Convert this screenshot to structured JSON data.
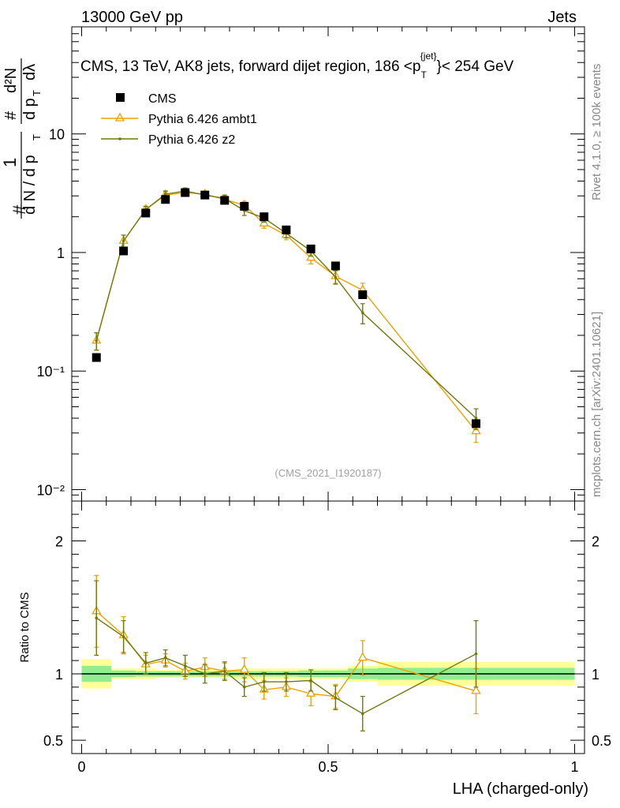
{
  "header": {
    "left": "13000 GeV pp",
    "right": "Jets"
  },
  "title": {
    "main": "CMS, 13 TeV, AK8 jets, forward dijet region, 186 <p",
    "sub": "T",
    "sup": "{jet}",
    "tail": "}< 254 GeV"
  },
  "side_labels": {
    "rivet": "Rivet 4.1.0, ≥ 100k events",
    "mcplots": "mcplots.cern.ch [arXiv:2401.10621]"
  },
  "watermark": "(CMS_2021_I1920187)",
  "ylabel_main": {
    "hash1": "#",
    "one": "1",
    "dN": "d N / d p",
    "T": "T",
    "hash2": "#",
    "dp": "d p",
    "d2N": "d²N",
    "dlambda": "dλ"
  },
  "ylabel_ratio": "Ratio to CMS",
  "xlabel": "LHA (charged-only)",
  "colors": {
    "cms": "#000000",
    "ambt1": "#f0a000",
    "z2": "#6e7a0a",
    "band_yellow": "#ffff99",
    "band_green": "#90ee90"
  },
  "chart_data": [
    {
      "type": "scatter",
      "panel": "main",
      "yscale": "log",
      "xlim": [
        -0.02,
        1.02
      ],
      "ylim": [
        0.008,
        80
      ],
      "xticks": [
        0,
        0.5,
        1
      ],
      "xtick_labels": [
        "0",
        "0.5",
        "1"
      ],
      "yticks": [
        0.01,
        0.1,
        1,
        10
      ],
      "ytick_labels": [
        "10⁻²",
        "10⁻¹",
        "1",
        "10"
      ],
      "legend": [
        "CMS",
        "Pythia 6.426 ambt1",
        "Pythia 6.426 z2"
      ],
      "series": [
        {
          "name": "CMS",
          "x": [
            0.03,
            0.085,
            0.13,
            0.17,
            0.21,
            0.25,
            0.29,
            0.33,
            0.37,
            0.415,
            0.465,
            0.515,
            0.57,
            0.8
          ],
          "y": [
            0.13,
            1.03,
            2.15,
            2.8,
            3.2,
            3.05,
            2.75,
            2.45,
            2.0,
            1.55,
            1.07,
            0.77,
            0.44,
            0.036
          ],
          "err": [
            0.01,
            0.05,
            0.08,
            0.1,
            0.1,
            0.1,
            0.1,
            0.1,
            0.08,
            0.06,
            0.05,
            0.04,
            0.03,
            0.003
          ]
        },
        {
          "name": "Pythia 6.426 ambt1",
          "x": [
            0.03,
            0.085,
            0.13,
            0.17,
            0.21,
            0.25,
            0.29,
            0.33,
            0.37,
            0.415,
            0.465,
            0.515,
            0.57,
            0.8
          ],
          "y": [
            0.18,
            1.25,
            2.3,
            3.05,
            3.2,
            3.1,
            2.8,
            2.5,
            1.75,
            1.4,
            0.9,
            0.63,
            0.48,
            0.031
          ],
          "err": [
            0.03,
            0.15,
            0.15,
            0.2,
            0.2,
            0.2,
            0.2,
            0.2,
            0.15,
            0.12,
            0.1,
            0.08,
            0.07,
            0.006
          ]
        },
        {
          "name": "Pythia 6.426 z2",
          "x": [
            0.03,
            0.085,
            0.13,
            0.17,
            0.21,
            0.25,
            0.29,
            0.33,
            0.37,
            0.415,
            0.465,
            0.515,
            0.57,
            0.8
          ],
          "y": [
            0.18,
            1.25,
            2.3,
            3.1,
            3.3,
            3.05,
            2.85,
            2.25,
            1.95,
            1.45,
            1.03,
            0.62,
            0.31,
            0.04
          ],
          "err": [
            0.03,
            0.15,
            0.15,
            0.2,
            0.2,
            0.2,
            0.2,
            0.2,
            0.15,
            0.12,
            0.1,
            0.08,
            0.06,
            0.008
          ]
        }
      ]
    },
    {
      "type": "line",
      "panel": "ratio",
      "xlim": [
        -0.02,
        1.02
      ],
      "ylim": [
        0.4,
        2.3
      ],
      "yticks": [
        0.5,
        1,
        2
      ],
      "ytick_labels": [
        "0.5",
        "1",
        "2"
      ],
      "reference": 1,
      "bands": {
        "x_edges": [
          0,
          0.06,
          0.11,
          0.15,
          0.19,
          0.23,
          0.27,
          0.31,
          0.35,
          0.39,
          0.44,
          0.49,
          0.54,
          0.6,
          1.0
        ],
        "yellow_half": [
          0.11,
          0.04,
          0.04,
          0.03,
          0.03,
          0.03,
          0.03,
          0.04,
          0.04,
          0.04,
          0.04,
          0.04,
          0.06,
          0.09
        ],
        "green_half": [
          0.06,
          0.025,
          0.02,
          0.02,
          0.02,
          0.02,
          0.02,
          0.02,
          0.02,
          0.02,
          0.025,
          0.025,
          0.04,
          0.045
        ]
      },
      "series": [
        {
          "name": "Pythia 6.426 ambt1",
          "x": [
            0.03,
            0.085,
            0.13,
            0.17,
            0.21,
            0.25,
            0.29,
            0.33,
            0.37,
            0.415,
            0.465,
            0.515,
            0.57,
            0.8
          ],
          "y": [
            1.47,
            1.29,
            1.07,
            1.1,
            1.02,
            1.05,
            1.02,
            1.03,
            0.88,
            0.9,
            0.85,
            0.83,
            1.12,
            0.87
          ],
          "err": [
            0.27,
            0.14,
            0.07,
            0.05,
            0.06,
            0.07,
            0.06,
            0.09,
            0.07,
            0.07,
            0.09,
            0.09,
            0.13,
            0.17
          ]
        },
        {
          "name": "Pythia 6.426 z2",
          "x": [
            0.03,
            0.085,
            0.13,
            0.17,
            0.21,
            0.25,
            0.29,
            0.33,
            0.37,
            0.415,
            0.465,
            0.515,
            0.57,
            0.8
          ],
          "y": [
            1.42,
            1.28,
            1.08,
            1.12,
            1.06,
            1.0,
            1.02,
            0.9,
            0.94,
            0.94,
            0.95,
            0.82,
            0.7,
            1.15
          ],
          "err": [
            0.28,
            0.12,
            0.08,
            0.06,
            0.08,
            0.07,
            0.07,
            0.07,
            0.07,
            0.07,
            0.08,
            0.09,
            0.13,
            0.25
          ]
        }
      ]
    }
  ]
}
